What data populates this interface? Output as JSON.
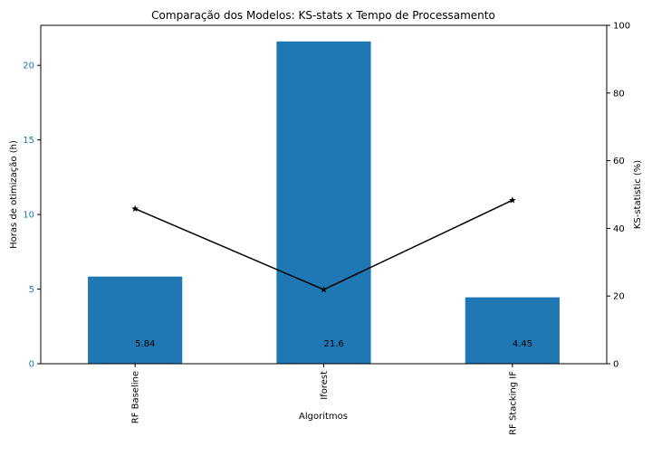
{
  "chart_data": {
    "type": "bar",
    "title": "Comparação dos Modelos: KS-stats x Tempo de Processamento",
    "xlabel": "Algoritmos",
    "categories": [
      "RF Baseline",
      "Iforest",
      "RF Stacking IF"
    ],
    "bar_series": {
      "values": [
        5.84,
        21.6,
        4.45
      ],
      "color": "#1f77b4",
      "axis": "left"
    },
    "line_series": {
      "values": [
        45.8,
        21.9,
        48.3
      ],
      "color": "#000000",
      "marker": "star",
      "axis": "right"
    },
    "data_labels": [
      "5.84",
      "21.6",
      "4.45"
    ],
    "left_axis": {
      "label": "Horas de otimização (h)",
      "color": "#1f77b4",
      "range": [
        0,
        22.68
      ],
      "ticks": [
        0,
        5,
        10,
        15,
        20
      ],
      "tick_labels": [
        "0",
        "5",
        "10",
        "15",
        "20"
      ]
    },
    "right_axis": {
      "label": "KS-statistic (%)",
      "color": "#000000",
      "range": [
        0,
        100
      ],
      "ticks": [
        0,
        20,
        40,
        60,
        80,
        100
      ],
      "tick_labels": [
        "0",
        "20",
        "40",
        "60",
        "80",
        "100"
      ]
    },
    "grid": false
  }
}
